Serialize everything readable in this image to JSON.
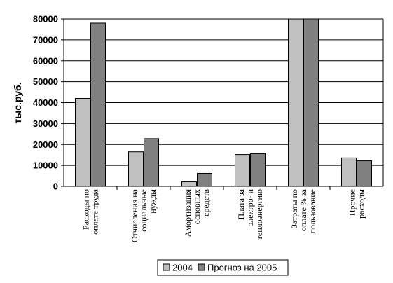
{
  "chart_data": {
    "type": "bar",
    "ylabel": "тыс.руб.",
    "ylim": [
      0,
      80000
    ],
    "yticks": [
      0,
      10000,
      20000,
      30000,
      40000,
      50000,
      60000,
      70000,
      80000
    ],
    "grid": true,
    "legend": "bottom",
    "categories": [
      [
        "Расходы по",
        "оплате труда"
      ],
      [
        "Отчисления на",
        "социальные",
        "нужды"
      ],
      [
        "Амортизация",
        "основных",
        "средств"
      ],
      [
        "Плата за",
        "электро- и",
        "теплоэнергию"
      ],
      [
        "Затраты по",
        "оплате % за",
        "пользование"
      ],
      [
        "Прочие",
        "расходы"
      ]
    ],
    "series": [
      {
        "name": "2004",
        "color": "#c0c0c0",
        "values": [
          42000,
          16500,
          2200,
          15200,
          80000,
          13600
        ]
      },
      {
        "name": "Прогноз на 2005",
        "color": "#808080",
        "values": [
          78000,
          22800,
          6200,
          15600,
          80000,
          12200
        ]
      }
    ]
  }
}
